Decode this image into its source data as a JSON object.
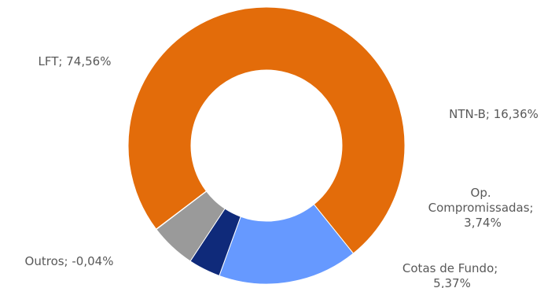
{
  "chart_data": {
    "type": "pie",
    "variant": "donut",
    "title": "",
    "slices": [
      {
        "name": "LFT",
        "value": 74.56,
        "color": "#E36C0A",
        "label_lines": [
          "LFT; 74,56%"
        ]
      },
      {
        "name": "NTN-B",
        "value": 16.36,
        "color": "#6699FF",
        "label_lines": [
          "NTN-B; 16,36%"
        ]
      },
      {
        "name": "Op. Compromissadas",
        "value": 3.74,
        "color": "#0F2A7A",
        "label_lines": [
          "Op.",
          "Compromissadas;",
          "3,74%"
        ]
      },
      {
        "name": "Cotas de Fundo",
        "value": 5.37,
        "color": "#9A9A9A",
        "label_lines": [
          "Cotas de Fundo;",
          "5,37%"
        ]
      },
      {
        "name": "Outros",
        "value": -0.04,
        "color": "#E36C0A",
        "label_lines": [
          "Outros; -0,04%"
        ]
      }
    ],
    "legend": "none"
  }
}
